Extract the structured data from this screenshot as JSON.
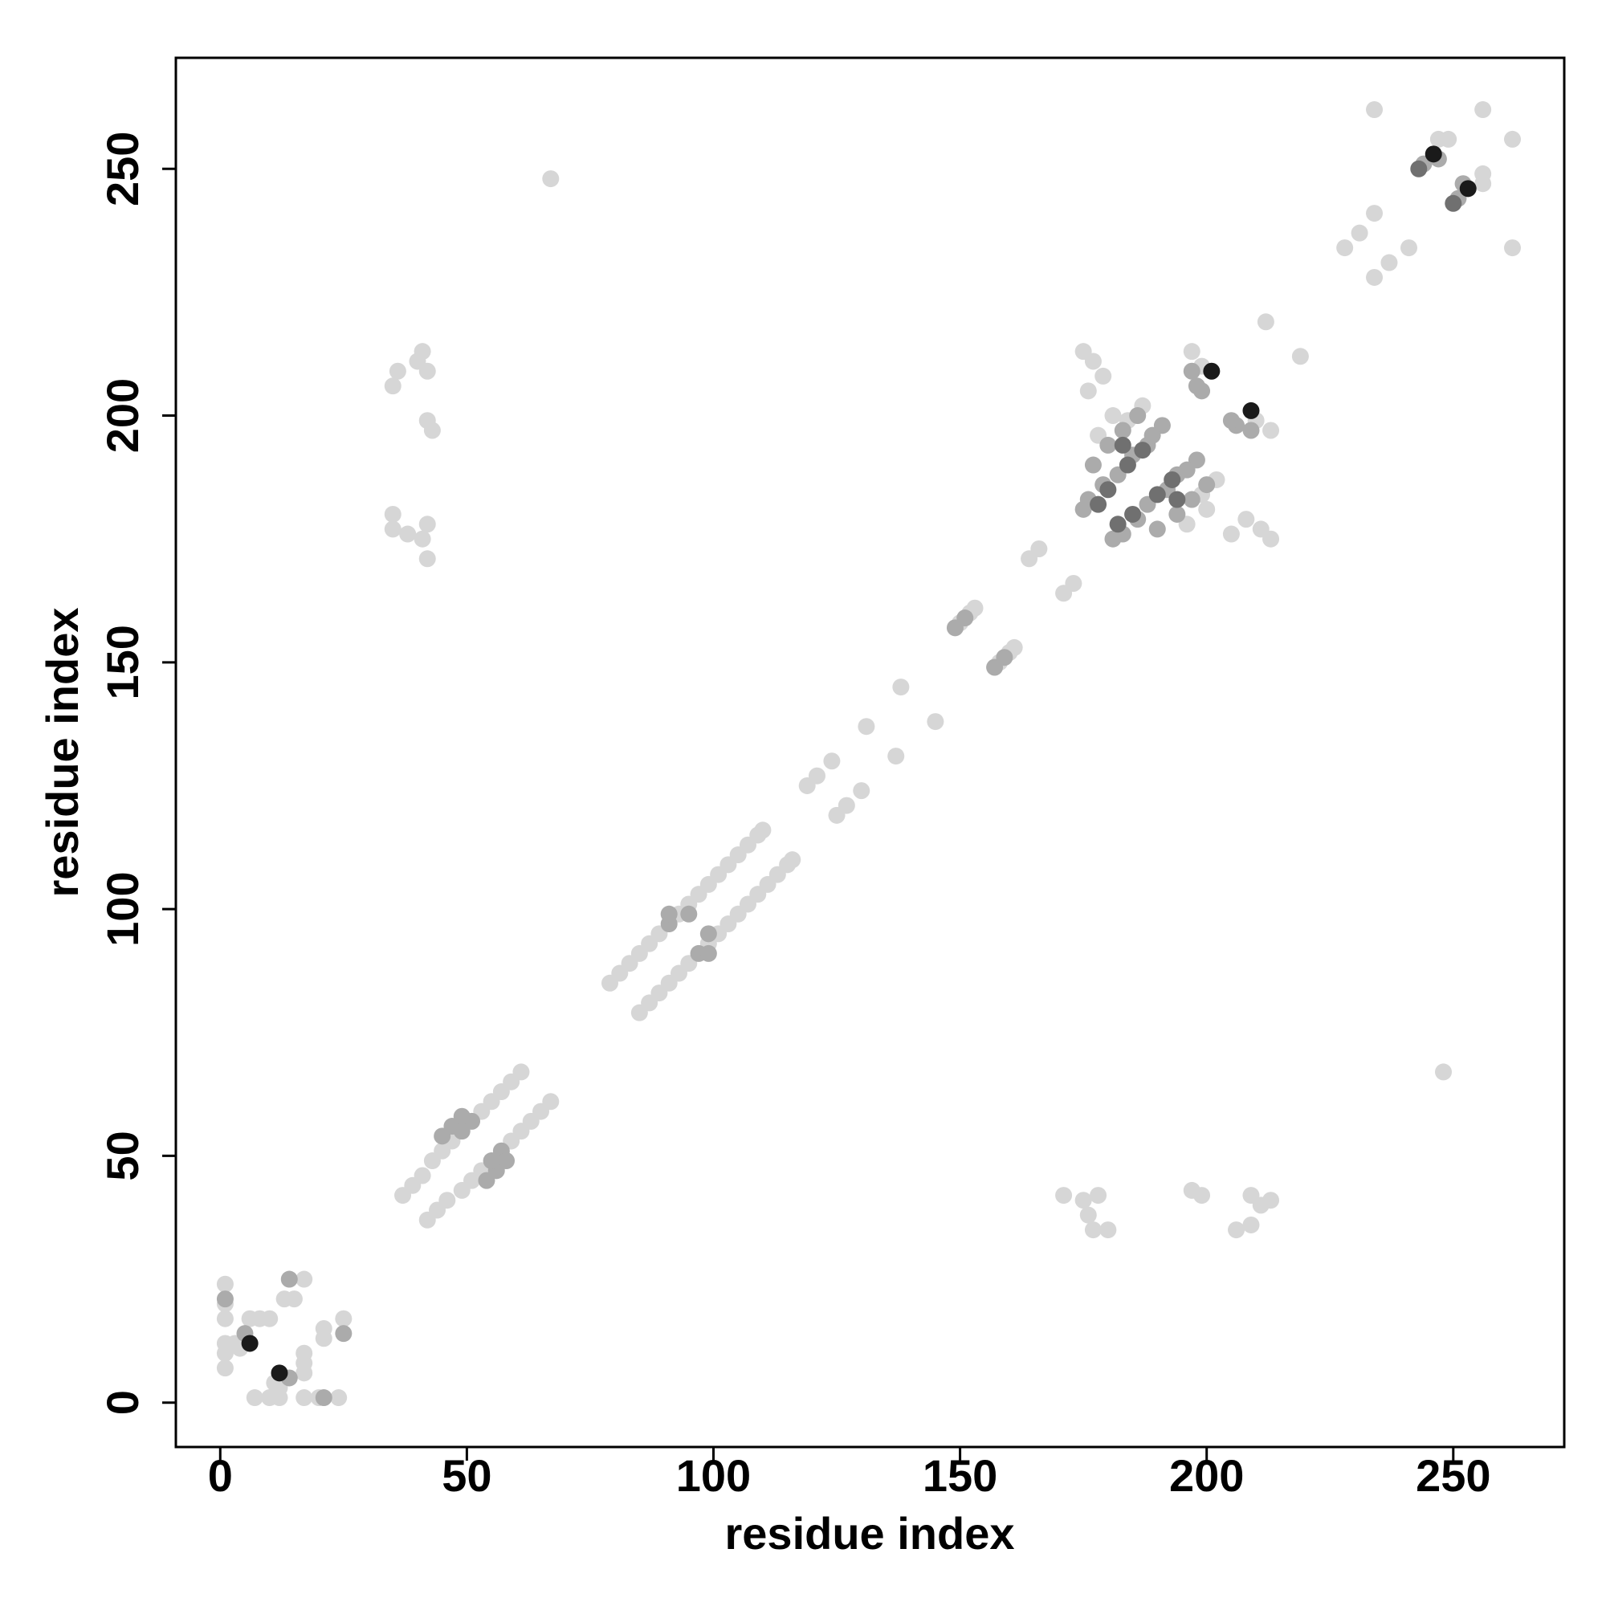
{
  "chart_data": {
    "type": "scatter",
    "xlabel": "residue index",
    "ylabel": "residue index",
    "xlim": [
      -9,
      272.5
    ],
    "ylim": [
      -9,
      272.5
    ],
    "xticks": [
      0,
      50,
      100,
      150,
      200,
      250
    ],
    "yticks": [
      0,
      50,
      100,
      150,
      200,
      250
    ],
    "grid": false,
    "series": [
      {
        "color": "#d6d6d6",
        "x": [
          1,
          1,
          1,
          1,
          1,
          1,
          3,
          4,
          6,
          8,
          10,
          13,
          17,
          15,
          37,
          39,
          41,
          43,
          45,
          47,
          53,
          55,
          57,
          59,
          61,
          79,
          81,
          83,
          85,
          87,
          89,
          93,
          95,
          97,
          99,
          101,
          103,
          105,
          107,
          109,
          110,
          119,
          121,
          124,
          131,
          138,
          150,
          152,
          153,
          164,
          166,
          175,
          177,
          179,
          176,
          197,
          199,
          212,
          178,
          181,
          184,
          187,
          228,
          231,
          234,
          234,
          256,
          247,
          249,
          35,
          36,
          40,
          41,
          42,
          42,
          43,
          35,
          35,
          38,
          41,
          42,
          42,
          67,
          7,
          10,
          12,
          17,
          20,
          24,
          12,
          11,
          17,
          17,
          17,
          21,
          25,
          21,
          42,
          44,
          46,
          49,
          51,
          53,
          59,
          61,
          63,
          65,
          67,
          85,
          87,
          89,
          91,
          93,
          95,
          99,
          101,
          103,
          105,
          107,
          109,
          111,
          113,
          115,
          116,
          125,
          127,
          130,
          137,
          145,
          158,
          160,
          161,
          171,
          173,
          213,
          211,
          208,
          205,
          213,
          210,
          219,
          196,
          200,
          199,
          202,
          234,
          237,
          241,
          262,
          262,
          256,
          256,
          206,
          209,
          211,
          213,
          209,
          199,
          197,
          177,
          180,
          176,
          175,
          178,
          171,
          248
        ],
        "y": [
          7,
          10,
          12,
          17,
          20,
          24,
          12,
          11,
          17,
          17,
          17,
          21,
          25,
          21,
          42,
          44,
          46,
          49,
          51,
          53,
          59,
          61,
          63,
          65,
          67,
          85,
          87,
          89,
          91,
          93,
          95,
          99,
          101,
          103,
          105,
          107,
          109,
          111,
          113,
          115,
          116,
          125,
          127,
          130,
          137,
          145,
          158,
          160,
          161,
          171,
          173,
          213,
          211,
          208,
          205,
          213,
          210,
          219,
          196,
          200,
          199,
          202,
          234,
          237,
          241,
          262,
          262,
          256,
          256,
          206,
          209,
          211,
          213,
          209,
          199,
          197,
          177,
          180,
          176,
          175,
          178,
          171,
          248,
          1,
          1,
          1,
          1,
          1,
          1,
          3,
          4,
          6,
          8,
          10,
          13,
          17,
          15,
          37,
          39,
          41,
          43,
          45,
          47,
          53,
          55,
          57,
          59,
          61,
          79,
          81,
          83,
          85,
          87,
          89,
          93,
          95,
          97,
          99,
          101,
          103,
          105,
          107,
          109,
          110,
          119,
          121,
          124,
          131,
          138,
          150,
          152,
          153,
          164,
          166,
          175,
          177,
          179,
          176,
          197,
          199,
          212,
          178,
          181,
          184,
          187,
          228,
          231,
          234,
          234,
          256,
          247,
          249,
          35,
          36,
          40,
          41,
          42,
          42,
          43,
          35,
          35,
          38,
          41,
          42,
          42,
          67
        ]
      },
      {
        "color": "#ababab",
        "x": [
          1,
          5,
          14,
          45,
          47,
          49,
          51,
          49,
          91,
          91,
          95,
          149,
          151,
          176,
          179,
          182,
          185,
          188,
          191,
          177,
          180,
          183,
          186,
          175,
          189,
          198,
          197,
          199,
          244,
          247,
          21,
          14,
          25,
          54,
          56,
          55,
          57,
          58,
          97,
          99,
          99,
          157,
          159,
          183,
          186,
          188,
          192,
          194,
          198,
          190,
          194,
          197,
          200,
          181,
          196,
          206,
          209,
          205,
          251,
          252
        ],
        "y": [
          21,
          14,
          25,
          54,
          56,
          55,
          57,
          58,
          97,
          99,
          99,
          157,
          159,
          183,
          186,
          188,
          192,
          194,
          198,
          190,
          194,
          197,
          200,
          181,
          196,
          206,
          209,
          205,
          251,
          252,
          1,
          5,
          14,
          45,
          47,
          49,
          51,
          49,
          91,
          91,
          95,
          149,
          151,
          176,
          179,
          182,
          185,
          188,
          191,
          177,
          180,
          183,
          186,
          175,
          189,
          198,
          197,
          199,
          244,
          247
        ]
      },
      {
        "color": "#707070",
        "x": [
          180,
          184,
          187,
          183,
          178,
          243,
          185,
          190,
          193,
          194,
          182,
          250
        ],
        "y": [
          185,
          190,
          193,
          194,
          182,
          250,
          180,
          184,
          187,
          183,
          178,
          243
        ]
      },
      {
        "color": "#1a1a1a",
        "x": [
          6,
          201,
          246,
          12,
          209,
          253
        ],
        "y": [
          12,
          209,
          253,
          6,
          201,
          246
        ]
      }
    ]
  }
}
